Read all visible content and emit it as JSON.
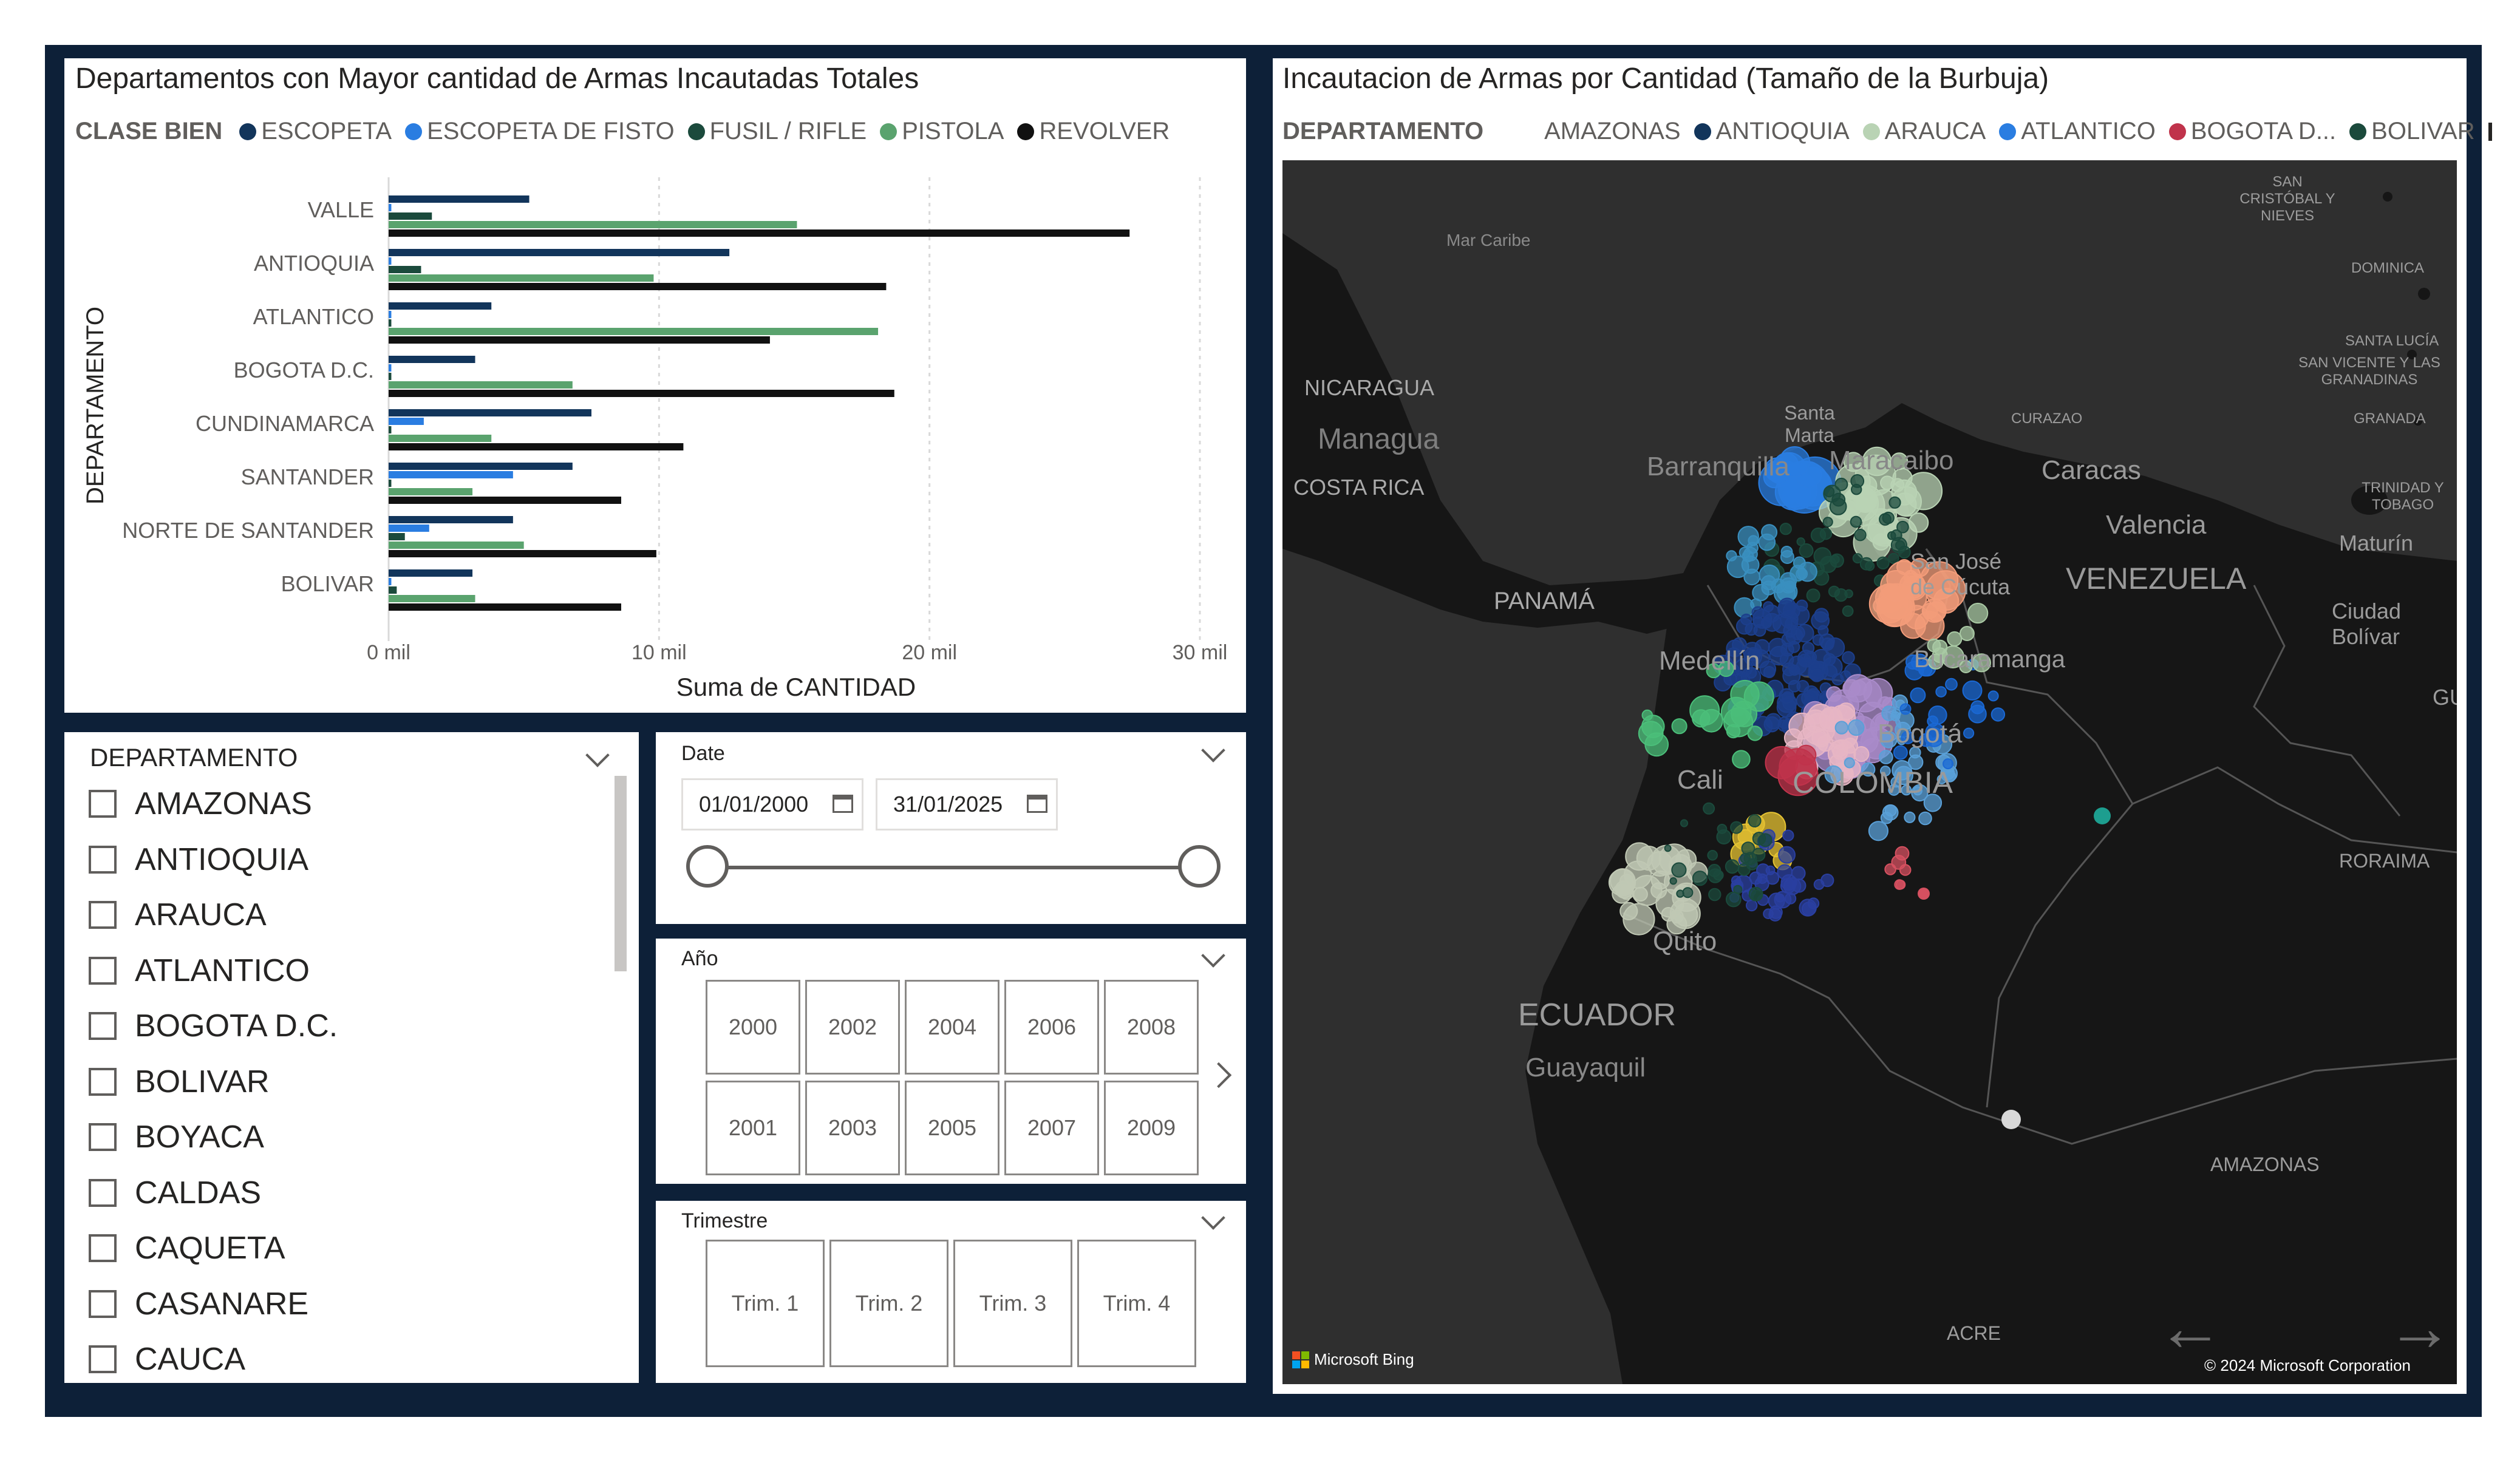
{
  "bar_visual": {
    "title": "Departamentos con Mayor cantidad de Armas Incautadas Totales",
    "legend_title": "CLASE BIEN",
    "legend": [
      {
        "label": "ESCOPETA",
        "color": "#12355b"
      },
      {
        "label": "ESCOPETA DE FISTO",
        "color": "#2a7de1"
      },
      {
        "label": "FUSIL / RIFLE",
        "color": "#1b4a3c"
      },
      {
        "label": "PISTOLA",
        "color": "#5aa36e"
      },
      {
        "label": "REVOLVER",
        "color": "#111111"
      }
    ]
  },
  "chart_data": {
    "type": "bar",
    "orientation": "horizontal",
    "title": "Departamentos con Mayor cantidad de Armas Incautadas Totales",
    "xlabel": "Suma de CANTIDAD",
    "ylabel": "DEPARTAMENTO",
    "xlim": [
      0,
      30000
    ],
    "xticks": [
      0,
      10000,
      20000,
      30000
    ],
    "xtick_labels": [
      "0 mil",
      "10 mil",
      "20 mil",
      "30 mil"
    ],
    "grid": true,
    "legend_position": "top-left",
    "categories": [
      "VALLE",
      "ANTIOQUIA",
      "ATLANTICO",
      "BOGOTA D.C.",
      "CUNDINAMARCA",
      "SANTANDER",
      "NORTE DE SANTANDER",
      "BOLIVAR"
    ],
    "series": [
      {
        "name": "ESCOPETA",
        "color": "#12355b",
        "values": [
          5200,
          12600,
          3800,
          3200,
          7500,
          6800,
          4600,
          3100
        ]
      },
      {
        "name": "ESCOPETA DE FISTO",
        "color": "#2a7de1",
        "values": [
          100,
          100,
          100,
          100,
          1300,
          4600,
          1500,
          100
        ]
      },
      {
        "name": "FUSIL / RIFLE",
        "color": "#1b4a3c",
        "values": [
          1600,
          1200,
          100,
          100,
          100,
          100,
          600,
          300
        ]
      },
      {
        "name": "PISTOLA",
        "color": "#5aa36e",
        "values": [
          15100,
          9800,
          18100,
          6800,
          3800,
          3100,
          5000,
          3200
        ]
      },
      {
        "name": "REVOLVER",
        "color": "#111111",
        "values": [
          27400,
          18400,
          14100,
          18700,
          10900,
          8600,
          9900,
          8600
        ]
      }
    ]
  },
  "dept_slicer": {
    "header": "DEPARTAMENTO",
    "items": [
      "AMAZONAS",
      "ANTIOQUIA",
      "ARAUCA",
      "ATLANTICO",
      "BOGOTA D.C.",
      "BOLIVAR",
      "BOYACA",
      "CALDAS",
      "CAQUETA",
      "CASANARE",
      "CAUCA"
    ]
  },
  "date_slicer": {
    "header": "Date",
    "start": "01/01/2000",
    "end": "31/01/2025"
  },
  "year_slicer": {
    "header": "Año",
    "row1": [
      "2000",
      "2002",
      "2004",
      "2006",
      "2008"
    ],
    "row2": [
      "2001",
      "2003",
      "2005",
      "2007",
      "2009"
    ]
  },
  "quarter_slicer": {
    "header": "Trimestre",
    "items": [
      "Trim. 1",
      "Trim. 2",
      "Trim. 3",
      "Trim. 4"
    ]
  },
  "map_visual": {
    "title": "Incautacion de Armas por Cantidad (Tamaño de la Burbuja)",
    "legend_title": "DEPARTAMENTO",
    "legend": [
      {
        "label": "AMAZONAS",
        "color": "#ffffff"
      },
      {
        "label": "ANTIOQUIA",
        "color": "#12355b"
      },
      {
        "label": "ARAUCA",
        "color": "#b9d3b4"
      },
      {
        "label": "ATLANTICO",
        "color": "#2a7de1"
      },
      {
        "label": "BOGOTA D...",
        "color": "#c0334b"
      },
      {
        "label": "BOLIVAR",
        "color": "#1b4a3c"
      }
    ],
    "labels": {
      "san_cristobal": "SAN CRISTÓBAL Y NIEVES",
      "mar_caribe": "Mar Caribe",
      "dominica": "DOMINICA",
      "santa_lucia": "SANTA LUCÍA",
      "san_vicente": "SAN VICENTE Y LAS GRANADINAS",
      "nicaragua": "NICARAGUA",
      "managua": "Managua",
      "costa_rica": "COSTA RICA",
      "curazao": "CURAZAO",
      "granada": "GRANADA",
      "santa_marta": "Santa Marta",
      "barranquilla": "Barranquilla",
      "maracaibo": "Maracaibo",
      "caracas": "Caracas",
      "valencia": "Valencia",
      "trinidad": "TRINIDAD Y TOBAGO",
      "maturin": "Maturín",
      "san_jose_cucuta": "San José de Cúcuta",
      "venezuela": "VENEZUELA",
      "panama": "PANAMÁ",
      "ciudad_bolivar": "Ciudad Bolívar",
      "medellin": "Medellín",
      "bucaramanga": "Bucaramanga",
      "gu": "GU",
      "bogota": "Bogotá",
      "colombia": "COLOMBIA",
      "cali": "Cali",
      "roraima": "RORAIMA",
      "quito": "Quito",
      "ecuador": "ECUADOR",
      "guayaquil": "Guayaquil",
      "amazonas": "AMAZONAS",
      "acre": "ACRE",
      "bing": "Microsoft Bing",
      "copyright": "© 2024 Microsoft Corporation"
    }
  }
}
